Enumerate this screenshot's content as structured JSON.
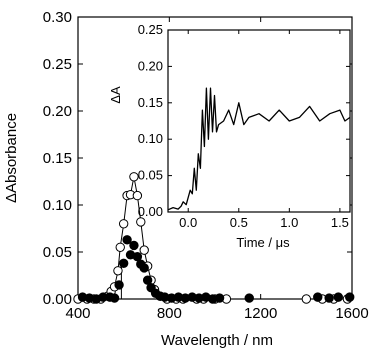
{
  "chart_data": [
    {
      "type": "scatter",
      "xlabel": "Wavelength / nm",
      "ylabel": "ΔAbsorbance",
      "xlim": [
        400,
        1600
      ],
      "ylim": [
        0,
        0.3
      ],
      "x_ticks": [
        400,
        800,
        1200,
        1600
      ],
      "y_ticks": [
        0.0,
        0.05,
        0.1,
        0.15,
        0.2,
        0.25,
        0.3
      ],
      "x_tick_labels": [
        "400",
        "800",
        "1200",
        "1600"
      ],
      "y_tick_labels": [
        "0.00",
        "0.05",
        "0.10",
        "0.15",
        "0.20",
        "0.25",
        "0.30"
      ],
      "series": [
        {
          "marker": "open-circle",
          "line": true,
          "x": [
            400,
            440,
            470,
            500,
            530,
            545,
            560,
            575,
            585,
            600,
            615,
            630,
            645,
            660,
            675,
            690,
            705,
            720,
            735,
            760,
            790,
            830,
            860,
            920,
            950,
            1000,
            1050,
            1400,
            1470,
            1520,
            1580
          ],
          "y": [
            0.0,
            0.0,
            0.0,
            0.0,
            0.003,
            0.008,
            0.013,
            0.03,
            0.055,
            0.08,
            0.11,
            0.111,
            0.13,
            0.11,
            0.082,
            0.052,
            0.035,
            0.02,
            0.01,
            0.003,
            0.0,
            0.0,
            0.0,
            0.0,
            0.0,
            0.0,
            0.0,
            0.0,
            0.0,
            0.0,
            0.0
          ]
        },
        {
          "marker": "filled-circle",
          "line": false,
          "x": [
            420,
            450,
            480,
            510,
            540,
            560,
            580,
            600,
            615,
            630,
            645,
            660,
            675,
            690,
            705,
            720,
            740,
            760,
            780,
            810,
            840,
            870,
            900,
            930,
            960,
            990,
            1020,
            1150,
            1450,
            1500,
            1540,
            1590
          ],
          "y": [
            0.002,
            0.001,
            0.0,
            0.002,
            0.002,
            0.001,
            0.015,
            0.038,
            0.063,
            0.047,
            0.057,
            0.045,
            0.037,
            0.033,
            0.02,
            0.012,
            0.006,
            0.003,
            0.002,
            0.001,
            0.002,
            0.001,
            0.002,
            0.001,
            0.002,
            0.0,
            0.001,
            0.001,
            0.002,
            0.001,
            0.002,
            0.002
          ]
        }
      ]
    },
    {
      "type": "line",
      "xlabel": "Time / μs",
      "ylabel": "ΔA",
      "xlim": [
        -0.2,
        1.6
      ],
      "ylim": [
        0,
        0.25
      ],
      "x_ticks": [
        0.0,
        0.5,
        1.0,
        1.5
      ],
      "y_ticks": [
        0.0,
        0.05,
        0.1,
        0.15,
        0.2,
        0.25
      ],
      "x_tick_labels": [
        "0.0",
        "0.5",
        "1.0",
        "1.5"
      ],
      "y_tick_labels": [
        "0.00",
        "0.05",
        "0.10",
        "0.15",
        "0.20",
        "0.25"
      ],
      "trace": {
        "x": [
          -0.2,
          -0.15,
          -0.1,
          -0.07,
          -0.05,
          -0.02,
          0.0,
          0.02,
          0.04,
          0.06,
          0.08,
          0.1,
          0.12,
          0.14,
          0.16,
          0.18,
          0.2,
          0.22,
          0.24,
          0.26,
          0.28,
          0.3,
          0.35,
          0.4,
          0.45,
          0.5,
          0.55,
          0.6,
          0.7,
          0.8,
          0.9,
          1.0,
          1.1,
          1.2,
          1.3,
          1.4,
          1.5,
          1.55,
          1.6
        ],
        "y": [
          0.003,
          0.006,
          0.004,
          0.008,
          0.014,
          0.01,
          0.02,
          0.03,
          0.025,
          0.06,
          0.03,
          0.08,
          0.06,
          0.14,
          0.09,
          0.17,
          0.1,
          0.17,
          0.11,
          0.16,
          0.11,
          0.12,
          0.125,
          0.14,
          0.12,
          0.15,
          0.12,
          0.13,
          0.135,
          0.125,
          0.14,
          0.125,
          0.13,
          0.145,
          0.125,
          0.135,
          0.14,
          0.125,
          0.13
        ]
      }
    }
  ]
}
